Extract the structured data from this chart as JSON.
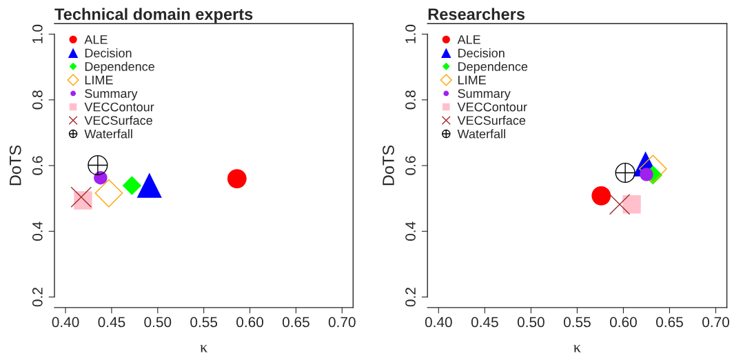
{
  "chart_data": [
    {
      "type": "scatter",
      "title": "Technical domain experts",
      "xlabel": "κ",
      "ylabel": "DoTS",
      "xlim": [
        0.388,
        0.712
      ],
      "ylim": [
        0.168,
        1.032
      ],
      "xticks": [
        {
          "value": 0.4,
          "label": "0.40"
        },
        {
          "value": 0.45,
          "label": "0.45"
        },
        {
          "value": 0.5,
          "label": "0.50"
        },
        {
          "value": 0.55,
          "label": "0.55"
        },
        {
          "value": 0.6,
          "label": "0.60"
        },
        {
          "value": 0.65,
          "label": "0.65"
        },
        {
          "value": 0.7,
          "label": "0.70"
        }
      ],
      "yticks": [
        0.2,
        0.4,
        0.6,
        0.8,
        {
          "value": 1.0,
          "label": "1.0"
        }
      ],
      "grid": false,
      "legend": "top left",
      "series": [
        {
          "name": "ALE",
          "color": "#ff0000",
          "marker": "circle",
          "x": [
            0.586
          ],
          "values": [
            0.56
          ]
        },
        {
          "name": "Decision",
          "color": "#0000ff",
          "marker": "triangle",
          "x": [
            0.491
          ],
          "values": [
            0.54
          ]
        },
        {
          "name": "Dependence",
          "color": "#00ff00",
          "marker": "diamond",
          "x": [
            0.472
          ],
          "values": [
            0.539
          ]
        },
        {
          "name": "LIME",
          "color": "#ffa500",
          "marker": "diamond",
          "x": [
            0.447
          ],
          "values": [
            0.516
          ]
        },
        {
          "name": "Summary",
          "color": "#a020f0",
          "marker": "circle",
          "x": [
            0.438
          ],
          "values": [
            0.563
          ]
        },
        {
          "name": "VECContour",
          "color": "#ffc0cb",
          "marker": "square",
          "x": [
            0.419
          ],
          "values": [
            0.494
          ]
        },
        {
          "name": "VECSurface",
          "color": "#a52a2a",
          "marker": "cross",
          "x": [
            0.417
          ],
          "values": [
            0.504
          ]
        },
        {
          "name": "Waterfall",
          "color": "#000000",
          "marker": "circle",
          "x": [
            0.435
          ],
          "values": [
            0.601
          ]
        }
      ]
    },
    {
      "type": "scatter",
      "title": "Researchers",
      "xlabel": "κ",
      "ylabel": "DoTS",
      "xlim": [
        0.388,
        0.712
      ],
      "ylim": [
        0.168,
        1.032
      ],
      "xticks": [
        {
          "value": 0.4,
          "label": "0.40"
        },
        {
          "value": 0.45,
          "label": "0.45"
        },
        {
          "value": 0.5,
          "label": "0.50"
        },
        {
          "value": 0.55,
          "label": "0.55"
        },
        {
          "value": 0.6,
          "label": "0.60"
        },
        {
          "value": 0.65,
          "label": "0.65"
        },
        {
          "value": 0.7,
          "label": "0.70"
        }
      ],
      "yticks": [
        0.2,
        0.4,
        0.6,
        0.8,
        {
          "value": 1.0,
          "label": "1.0"
        }
      ],
      "grid": false,
      "legend": "top left",
      "series": [
        {
          "name": "ALE",
          "color": "#ff0000",
          "marker": "circle",
          "x": [
            0.576
          ],
          "values": [
            0.508
          ]
        },
        {
          "name": "Decision",
          "color": "#0000ff",
          "marker": "triangle",
          "x": [
            0.624
          ],
          "values": [
            0.605
          ]
        },
        {
          "name": "Dependence",
          "color": "#00ff00",
          "marker": "diamond",
          "x": [
            0.632
          ],
          "values": [
            0.571
          ]
        },
        {
          "name": "LIME",
          "color": "#ffa500",
          "marker": "diamond",
          "x": [
            0.632
          ],
          "values": [
            0.59
          ]
        },
        {
          "name": "Summary",
          "color": "#a020f0",
          "marker": "circle",
          "x": [
            0.625
          ],
          "values": [
            0.573
          ]
        },
        {
          "name": "VECContour",
          "color": "#ffc0cb",
          "marker": "square",
          "x": [
            0.609
          ],
          "values": [
            0.482
          ]
        },
        {
          "name": "VECSurface",
          "color": "#a52a2a",
          "marker": "cross",
          "x": [
            0.596
          ],
          "values": [
            0.482
          ]
        },
        {
          "name": "Waterfall",
          "color": "#000000",
          "marker": "circle",
          "x": [
            0.602
          ],
          "values": [
            0.578
          ]
        }
      ]
    }
  ]
}
